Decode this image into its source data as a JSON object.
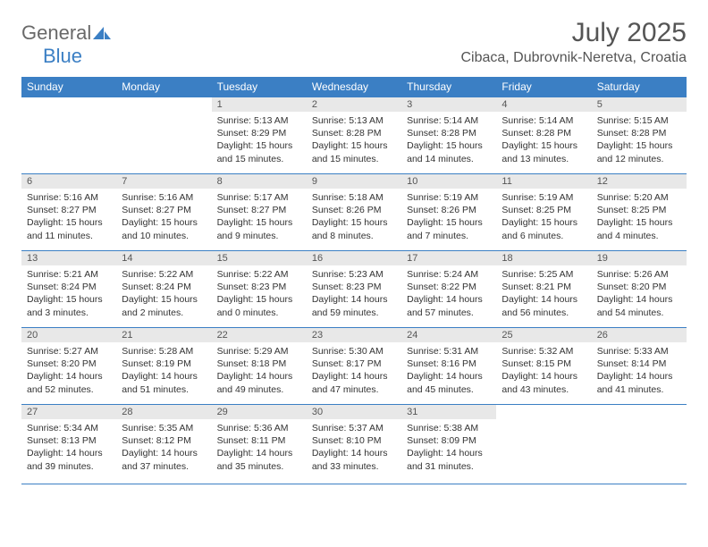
{
  "logo": {
    "word1": "General",
    "word2": "Blue"
  },
  "title": "July 2025",
  "location": "Cibaca, Dubrovnik-Neretva, Croatia",
  "colors": {
    "header_bg": "#3b7fc4",
    "header_text": "#ffffff",
    "daynum_bg": "#e8e8e8",
    "rule": "#3b7fc4",
    "text": "#333333",
    "logo_gray": "#696969",
    "logo_blue": "#3b7fc4"
  },
  "day_headers": [
    "Sunday",
    "Monday",
    "Tuesday",
    "Wednesday",
    "Thursday",
    "Friday",
    "Saturday"
  ],
  "weeks": [
    [
      {
        "n": "",
        "sr": "",
        "ss": "",
        "dl": ""
      },
      {
        "n": "",
        "sr": "",
        "ss": "",
        "dl": ""
      },
      {
        "n": "1",
        "sr": "5:13 AM",
        "ss": "8:29 PM",
        "dl": "15 hours and 15 minutes."
      },
      {
        "n": "2",
        "sr": "5:13 AM",
        "ss": "8:28 PM",
        "dl": "15 hours and 15 minutes."
      },
      {
        "n": "3",
        "sr": "5:14 AM",
        "ss": "8:28 PM",
        "dl": "15 hours and 14 minutes."
      },
      {
        "n": "4",
        "sr": "5:14 AM",
        "ss": "8:28 PM",
        "dl": "15 hours and 13 minutes."
      },
      {
        "n": "5",
        "sr": "5:15 AM",
        "ss": "8:28 PM",
        "dl": "15 hours and 12 minutes."
      }
    ],
    [
      {
        "n": "6",
        "sr": "5:16 AM",
        "ss": "8:27 PM",
        "dl": "15 hours and 11 minutes."
      },
      {
        "n": "7",
        "sr": "5:16 AM",
        "ss": "8:27 PM",
        "dl": "15 hours and 10 minutes."
      },
      {
        "n": "8",
        "sr": "5:17 AM",
        "ss": "8:27 PM",
        "dl": "15 hours and 9 minutes."
      },
      {
        "n": "9",
        "sr": "5:18 AM",
        "ss": "8:26 PM",
        "dl": "15 hours and 8 minutes."
      },
      {
        "n": "10",
        "sr": "5:19 AM",
        "ss": "8:26 PM",
        "dl": "15 hours and 7 minutes."
      },
      {
        "n": "11",
        "sr": "5:19 AM",
        "ss": "8:25 PM",
        "dl": "15 hours and 6 minutes."
      },
      {
        "n": "12",
        "sr": "5:20 AM",
        "ss": "8:25 PM",
        "dl": "15 hours and 4 minutes."
      }
    ],
    [
      {
        "n": "13",
        "sr": "5:21 AM",
        "ss": "8:24 PM",
        "dl": "15 hours and 3 minutes."
      },
      {
        "n": "14",
        "sr": "5:22 AM",
        "ss": "8:24 PM",
        "dl": "15 hours and 2 minutes."
      },
      {
        "n": "15",
        "sr": "5:22 AM",
        "ss": "8:23 PM",
        "dl": "15 hours and 0 minutes."
      },
      {
        "n": "16",
        "sr": "5:23 AM",
        "ss": "8:23 PM",
        "dl": "14 hours and 59 minutes."
      },
      {
        "n": "17",
        "sr": "5:24 AM",
        "ss": "8:22 PM",
        "dl": "14 hours and 57 minutes."
      },
      {
        "n": "18",
        "sr": "5:25 AM",
        "ss": "8:21 PM",
        "dl": "14 hours and 56 minutes."
      },
      {
        "n": "19",
        "sr": "5:26 AM",
        "ss": "8:20 PM",
        "dl": "14 hours and 54 minutes."
      }
    ],
    [
      {
        "n": "20",
        "sr": "5:27 AM",
        "ss": "8:20 PM",
        "dl": "14 hours and 52 minutes."
      },
      {
        "n": "21",
        "sr": "5:28 AM",
        "ss": "8:19 PM",
        "dl": "14 hours and 51 minutes."
      },
      {
        "n": "22",
        "sr": "5:29 AM",
        "ss": "8:18 PM",
        "dl": "14 hours and 49 minutes."
      },
      {
        "n": "23",
        "sr": "5:30 AM",
        "ss": "8:17 PM",
        "dl": "14 hours and 47 minutes."
      },
      {
        "n": "24",
        "sr": "5:31 AM",
        "ss": "8:16 PM",
        "dl": "14 hours and 45 minutes."
      },
      {
        "n": "25",
        "sr": "5:32 AM",
        "ss": "8:15 PM",
        "dl": "14 hours and 43 minutes."
      },
      {
        "n": "26",
        "sr": "5:33 AM",
        "ss": "8:14 PM",
        "dl": "14 hours and 41 minutes."
      }
    ],
    [
      {
        "n": "27",
        "sr": "5:34 AM",
        "ss": "8:13 PM",
        "dl": "14 hours and 39 minutes."
      },
      {
        "n": "28",
        "sr": "5:35 AM",
        "ss": "8:12 PM",
        "dl": "14 hours and 37 minutes."
      },
      {
        "n": "29",
        "sr": "5:36 AM",
        "ss": "8:11 PM",
        "dl": "14 hours and 35 minutes."
      },
      {
        "n": "30",
        "sr": "5:37 AM",
        "ss": "8:10 PM",
        "dl": "14 hours and 33 minutes."
      },
      {
        "n": "31",
        "sr": "5:38 AM",
        "ss": "8:09 PM",
        "dl": "14 hours and 31 minutes."
      },
      {
        "n": "",
        "sr": "",
        "ss": "",
        "dl": ""
      },
      {
        "n": "",
        "sr": "",
        "ss": "",
        "dl": ""
      }
    ]
  ],
  "labels": {
    "sunrise": "Sunrise:",
    "sunset": "Sunset:",
    "daylight": "Daylight:"
  }
}
